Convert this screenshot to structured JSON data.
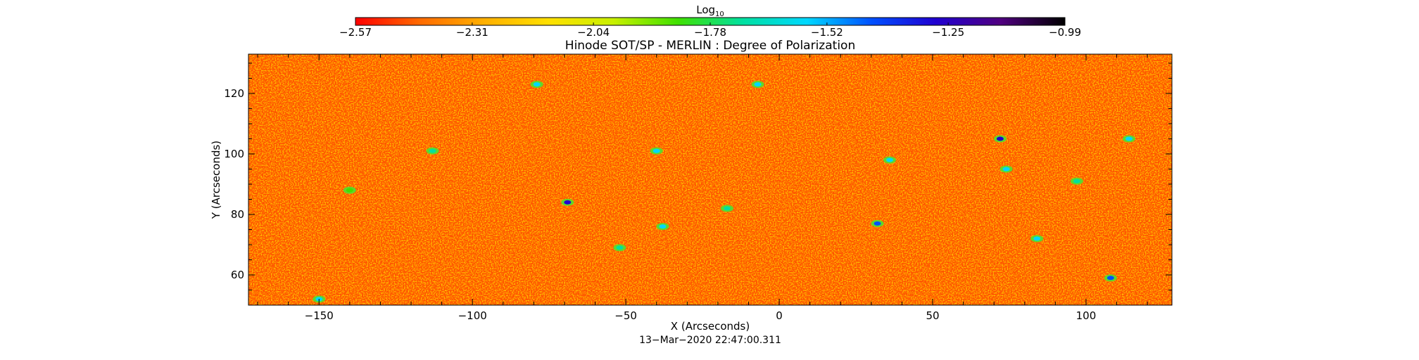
{
  "chart_data": {
    "type": "heatmap",
    "title": "Hinode SOT/SP - MERLIN : Degree of Polarization",
    "xlabel": "X (Arcseconds)",
    "ylabel": "Y (Arcseconds)",
    "xlim": [
      -173,
      128
    ],
    "ylim": [
      50,
      133
    ],
    "x_ticks": [
      -150,
      -100,
      -50,
      0,
      50,
      100
    ],
    "y_ticks": [
      60,
      80,
      100,
      120
    ],
    "x_tick_labels": [
      "−150",
      "−100",
      "−50",
      "0",
      "50",
      "100"
    ],
    "y_tick_labels": [
      "60",
      "80",
      "100",
      "120"
    ],
    "grid": false,
    "colorbar": {
      "title_base": "Log",
      "title_sub": "10",
      "position": "top",
      "range": [
        -2.57,
        -0.99
      ],
      "tick_values": [
        -2.57,
        -2.31,
        -2.04,
        -1.78,
        -1.52,
        -1.25,
        -0.99
      ],
      "tick_labels": [
        "−2.57",
        "−2.31",
        "−2.04",
        "−1.78",
        "−1.52",
        "−1.25",
        "−0.99"
      ],
      "colors": [
        "#ff0000",
        "#ff6a00",
        "#ffb000",
        "#ffe000",
        "#c8f000",
        "#40e000",
        "#00e0a0",
        "#00d8ff",
        "#0050ff",
        "#2000d0",
        "#500080",
        "#000000"
      ]
    },
    "background_level": -2.4,
    "features": [
      {
        "x": -140,
        "y": 88,
        "value": -1.9
      },
      {
        "x": -113,
        "y": 101,
        "value": -1.7
      },
      {
        "x": -79,
        "y": 123,
        "value": -1.6
      },
      {
        "x": -69,
        "y": 84,
        "value": -1.3
      },
      {
        "x": -40,
        "y": 101,
        "value": -1.6
      },
      {
        "x": -38,
        "y": 76,
        "value": -1.5
      },
      {
        "x": -17,
        "y": 82,
        "value": -1.7
      },
      {
        "x": -7,
        "y": 123,
        "value": -1.5
      },
      {
        "x": 32,
        "y": 77,
        "value": -1.4
      },
      {
        "x": 36,
        "y": 98,
        "value": -1.5
      },
      {
        "x": 72,
        "y": 105,
        "value": -1.3
      },
      {
        "x": 74,
        "y": 95,
        "value": -1.5
      },
      {
        "x": 84,
        "y": 72,
        "value": -1.6
      },
      {
        "x": 108,
        "y": 59,
        "value": -1.4
      },
      {
        "x": 114,
        "y": 105,
        "value": -1.5
      },
      {
        "x": 97,
        "y": 91,
        "value": -1.7
      },
      {
        "x": -52,
        "y": 69,
        "value": -1.7
      },
      {
        "x": -150,
        "y": 52,
        "value": -1.6
      }
    ]
  },
  "footer": {
    "timestamp": "13−Mar−2020 22:47:00.311"
  }
}
